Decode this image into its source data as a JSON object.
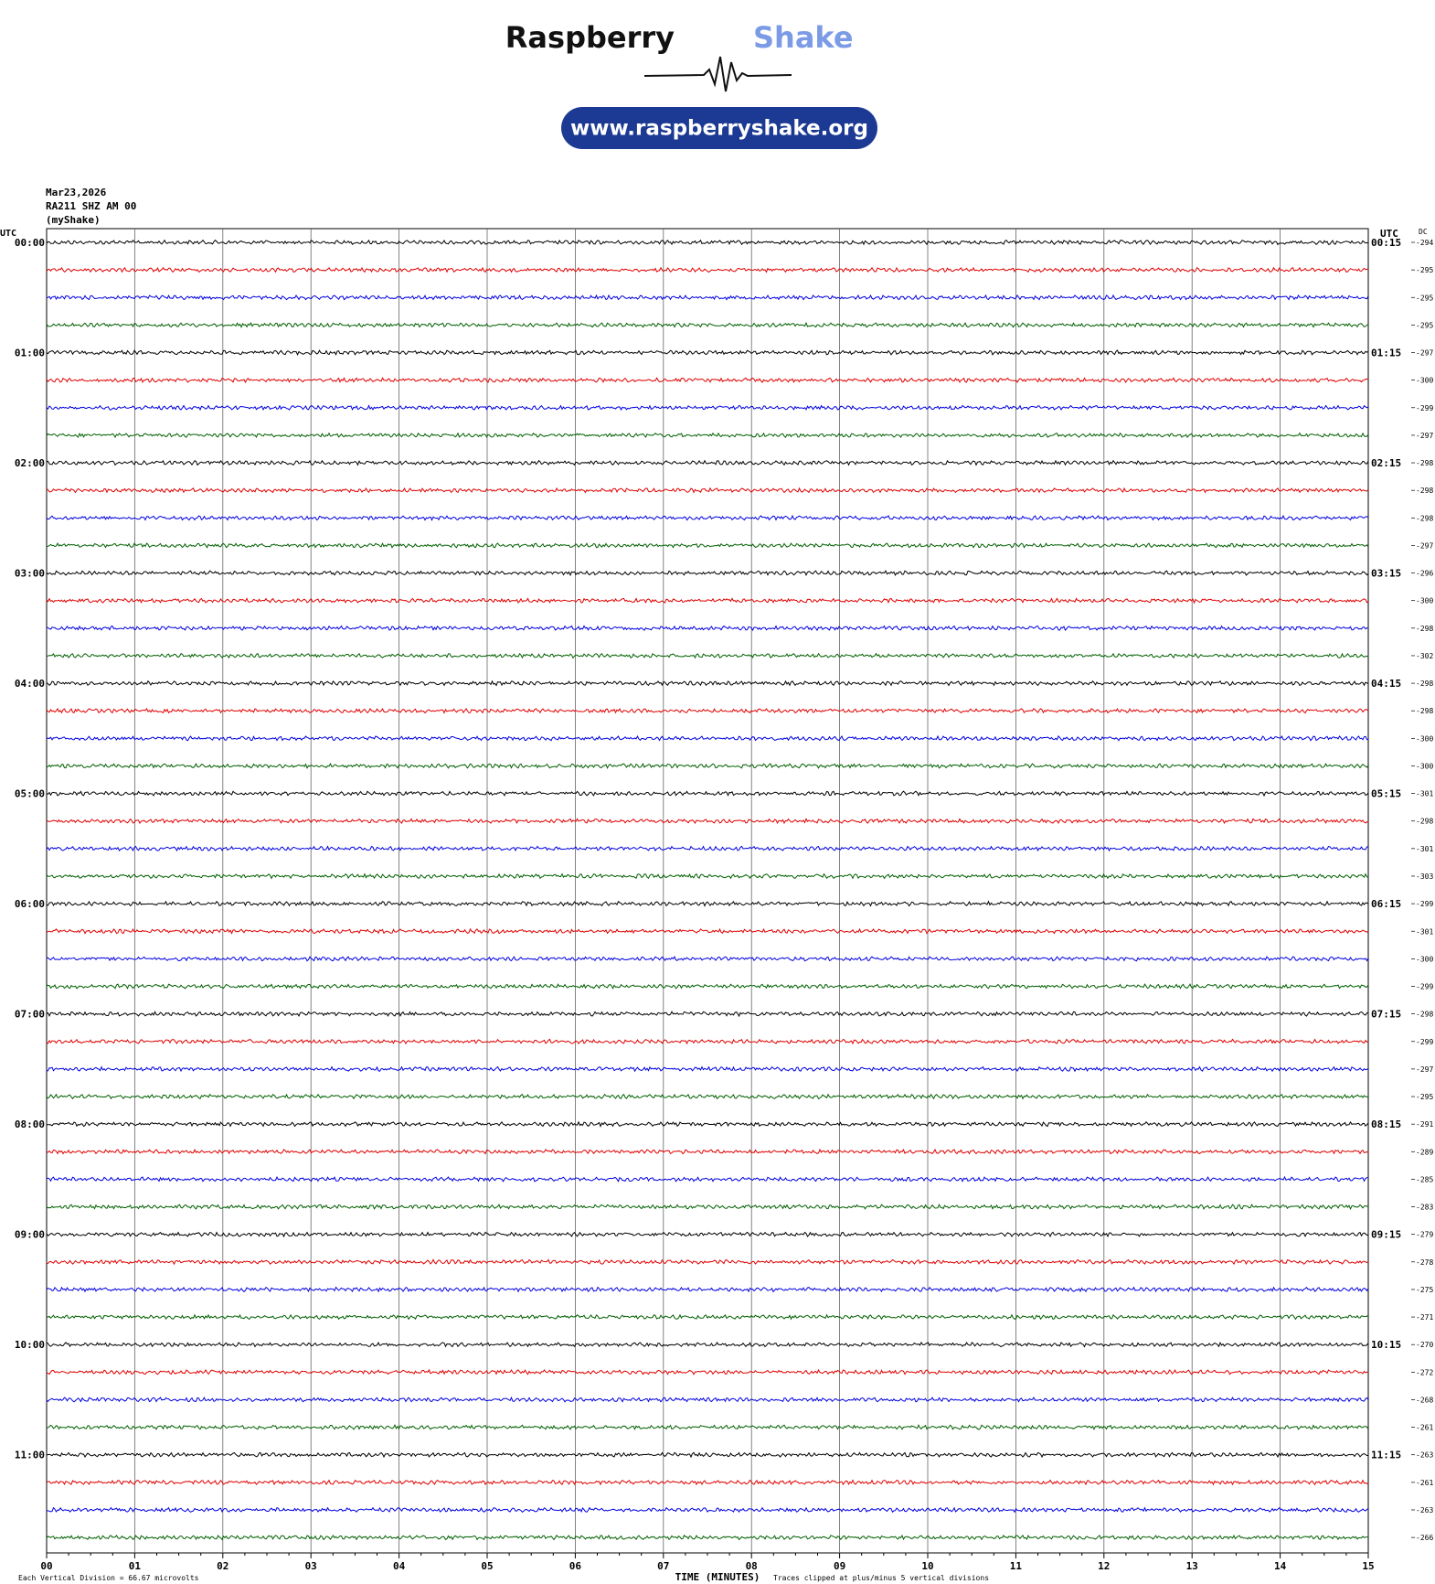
{
  "header": {
    "logo_primary": "Raspberry",
    "logo_secondary": "Shake",
    "url": "www.raspberryshake.org"
  },
  "info": [
    "Mar23,2026",
    "RA211 SHZ AM 00",
    "(myShake)"
  ],
  "left_axis": {
    "title": "UTC",
    "labels": [
      "00:00",
      "01:00",
      "02:00",
      "03:00",
      "04:00",
      "05:00",
      "06:00",
      "07:00",
      "08:00",
      "09:00",
      "10:00",
      "11:00"
    ]
  },
  "right_axis": {
    "title": "UTC",
    "labels": [
      "00:15",
      "01:15",
      "02:15",
      "03:15",
      "04:15",
      "05:15",
      "06:15",
      "07:15",
      "08:15",
      "09:15",
      "10:15",
      "11:15"
    ]
  },
  "dc": {
    "title": "DC",
    "values": [
      -294,
      -295,
      -295,
      -295,
      -297,
      -300,
      -299,
      -297,
      -298,
      -298,
      -298,
      -297,
      -296,
      -300,
      -298,
      -302,
      -298,
      -298,
      -300,
      -300,
      -301,
      -298,
      -301,
      -303,
      -299,
      -301,
      -300,
      -299,
      -298,
      -299,
      -297,
      -295,
      -291,
      -289,
      -285,
      -283,
      -279,
      -278,
      -275,
      -271,
      -270,
      -272,
      -268,
      -261,
      -263,
      -261,
      -263,
      -266
    ]
  },
  "traces": {
    "colors": [
      "#000000",
      "#e00000",
      "#0000e0",
      "#006000"
    ]
  },
  "x_axis": {
    "ticks": [
      "00",
      "01",
      "02",
      "03",
      "04",
      "05",
      "06",
      "07",
      "08",
      "09",
      "10",
      "11",
      "12",
      "13",
      "14",
      "15"
    ],
    "title": "TIME (MINUTES)"
  },
  "footer": {
    "division": "Each Vertical Division =   66.67 microvolts",
    "clip": "Traces clipped at plus/minus 5 vertical divisions"
  }
}
